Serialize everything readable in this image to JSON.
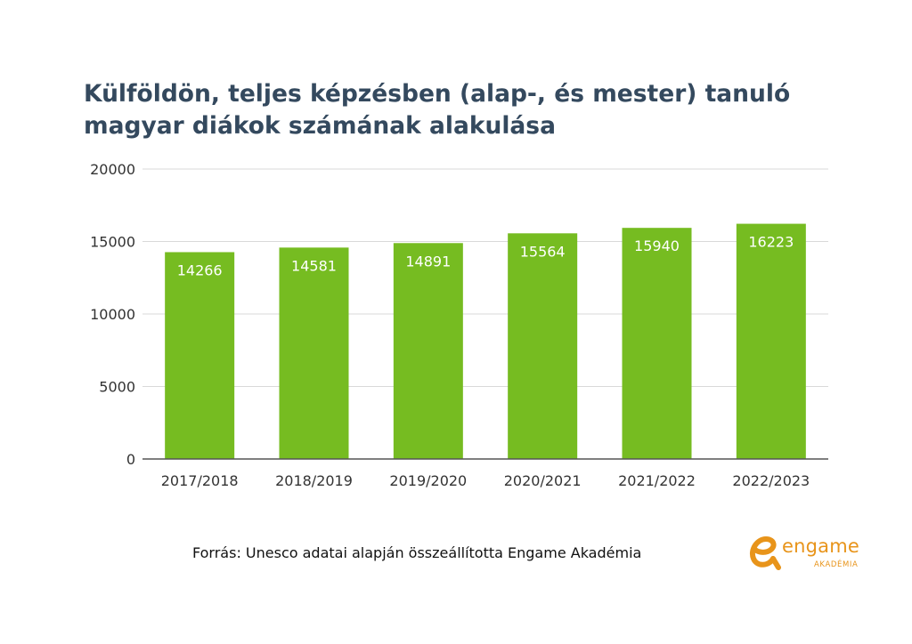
{
  "title": {
    "line1": "Külföldön, teljes képzésben (alap-, és mester) tanuló",
    "line2": "magyar diákok számának alakulása"
  },
  "chart_data": {
    "type": "bar",
    "title": "Külföldön, teljes képzésben (alap-, és mester) tanuló magyar diákok számának alakulása",
    "categories": [
      "2017/2018",
      "2018/2019",
      "2019/2020",
      "2020/2021",
      "2021/2022",
      "2022/2023"
    ],
    "values": [
      14266,
      14581,
      14891,
      15564,
      15940,
      16223
    ],
    "xlabel": "",
    "ylabel": "",
    "ylim": [
      0,
      20000
    ],
    "yticks": [
      "0",
      "5000",
      "10000",
      "15000",
      "20000"
    ],
    "grid": true,
    "legend": "none",
    "bar_color": "#76bc21",
    "label_color": "#ffffff",
    "grid_color": "#d9d9d9",
    "axis_color": "#555555"
  },
  "source": "Forrás: Unesco adatai alapján összeállította Engame Akadémia",
  "logo": {
    "word": "engame",
    "sub": "AKADÉMIA",
    "color": "#e8941a",
    "icon": "engame-logo-icon"
  }
}
